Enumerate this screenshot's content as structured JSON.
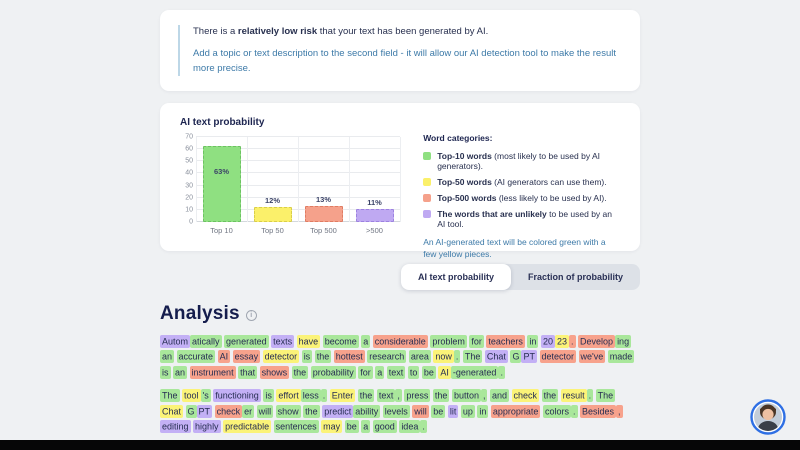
{
  "risk_banner": {
    "line1_prefix": "There is a ",
    "line1_bold": "relatively low risk",
    "line1_suffix": " that your text has been generated by AI.",
    "line2": "Add a topic or text description to the second field - it will allow our AI detection tool to make the result more precise."
  },
  "chart_card": {
    "title": "AI text probability",
    "legend": {
      "heading": "Word categories:",
      "items": [
        {
          "color": "#8fe081",
          "bold": "Top-10 words",
          "rest": " (most likely to be used by AI generators)."
        },
        {
          "color": "#fbf06a",
          "bold": "Top-50 words",
          "rest": " (AI generators can use them)."
        },
        {
          "color": "#f5a18b",
          "bold": "Top-500 words",
          "rest": " (less likely to be used by AI)."
        },
        {
          "color": "#bfa9f2",
          "bold": "The words that are unlikely",
          "rest": " to be used by an AI tool."
        }
      ],
      "note": "An AI-generated text will be colored green with a few yellow pieces."
    }
  },
  "chart_data": {
    "type": "bar",
    "title": "AI text probability",
    "categories": [
      "Top 10",
      "Top 50",
      "Top 500",
      ">500"
    ],
    "values": [
      63,
      12,
      13,
      11
    ],
    "data_labels": [
      "63%",
      "12%",
      "13%",
      "11%"
    ],
    "bar_colors": [
      "#8fe081",
      "#fbf06a",
      "#f5a18b",
      "#bfa9f2"
    ],
    "bar_border_colors": [
      "#6cc262",
      "#d9ce4a",
      "#e07c63",
      "#9d82e0"
    ],
    "ylim": [
      0,
      70
    ],
    "yticks": [
      0,
      10,
      20,
      30,
      40,
      50,
      60,
      70
    ],
    "grid": true,
    "legend_position": "right"
  },
  "tabs": [
    {
      "label": "AI text probability",
      "active": true
    },
    {
      "label": "Fraction of probability",
      "active": false
    }
  ],
  "analysis": {
    "heading": "Analysis",
    "highlight_colors": {
      "g": "#a9e79b",
      "y": "#fbf378",
      "r": "#f7a28c",
      "p": "#c3b0f5"
    },
    "paragraphs": [
      [
        {
          "t": "Autom",
          "c": "p"
        },
        {
          "t": "atically",
          "c": "g",
          "j": 1
        },
        {
          "t": "generated",
          "c": "g"
        },
        {
          "t": "texts",
          "c": "p"
        },
        {
          "t": "have",
          "c": "y"
        },
        {
          "t": "become",
          "c": "g"
        },
        {
          "t": "a",
          "c": "g"
        },
        {
          "t": "considerable",
          "c": "r"
        },
        {
          "t": "problem",
          "c": "g"
        },
        {
          "t": "for",
          "c": "g"
        },
        {
          "t": "teachers",
          "c": "r"
        },
        {
          "t": "in",
          "c": "g"
        },
        {
          "t": "20",
          "c": "p"
        },
        {
          "t": "23",
          "c": "y",
          "j": 1
        },
        {
          "t": ".",
          "c": "r",
          "j": 1
        },
        {
          "t": "Develop",
          "c": "r"
        },
        {
          "t": "ing",
          "c": "g",
          "j": 1
        },
        {
          "t": "an",
          "c": "g"
        },
        {
          "t": "accurate",
          "c": "g"
        },
        {
          "t": "AI",
          "c": "r"
        },
        {
          "t": "essay",
          "c": "r"
        },
        {
          "t": "detector",
          "c": "y"
        },
        {
          "t": "is",
          "c": "g"
        },
        {
          "t": "the",
          "c": "g"
        },
        {
          "t": "hottest",
          "c": "r"
        },
        {
          "t": "research",
          "c": "g"
        },
        {
          "t": "area",
          "c": "g"
        },
        {
          "t": "now",
          "c": "y"
        },
        {
          "t": ".",
          "c": "g",
          "j": 1
        },
        {
          "t": "The",
          "c": "g"
        },
        {
          "t": "Chat",
          "c": "p"
        },
        {
          "t": "G",
          "c": "g"
        },
        {
          "t": "PT",
          "c": "p",
          "j": 1
        },
        {
          "t": "detector",
          "c": "r"
        },
        {
          "t": "we've",
          "c": "r"
        },
        {
          "t": "made",
          "c": "g"
        },
        {
          "t": "is",
          "c": "g"
        },
        {
          "t": "an",
          "c": "g"
        },
        {
          "t": "instrument",
          "c": "r"
        },
        {
          "t": "that",
          "c": "g"
        },
        {
          "t": "shows",
          "c": "r"
        },
        {
          "t": "the",
          "c": "g"
        },
        {
          "t": "probability",
          "c": "g"
        },
        {
          "t": "for",
          "c": "g"
        },
        {
          "t": "a",
          "c": "g"
        },
        {
          "t": "text",
          "c": "g"
        },
        {
          "t": "to",
          "c": "g"
        },
        {
          "t": "be",
          "c": "g"
        },
        {
          "t": "AI",
          "c": "y"
        },
        {
          "t": "-generated",
          "c": "g",
          "j": 1
        },
        {
          "t": ".",
          "c": "g",
          "j": 1
        }
      ],
      [
        {
          "t": "The",
          "c": "g"
        },
        {
          "t": "tool",
          "c": "y"
        },
        {
          "t": "'s",
          "c": "g",
          "j": 1
        },
        {
          "t": "functioning",
          "c": "p"
        },
        {
          "t": "is",
          "c": "g"
        },
        {
          "t": "effort",
          "c": "y"
        },
        {
          "t": "less",
          "c": "g",
          "j": 1
        },
        {
          "t": ".",
          "c": "g",
          "j": 1
        },
        {
          "t": "Enter",
          "c": "y"
        },
        {
          "t": "the",
          "c": "g"
        },
        {
          "t": "text",
          "c": "g"
        },
        {
          "t": ",",
          "c": "g",
          "j": 1
        },
        {
          "t": "press",
          "c": "g"
        },
        {
          "t": "the",
          "c": "g"
        },
        {
          "t": "button",
          "c": "g"
        },
        {
          "t": ",",
          "c": "g",
          "j": 1
        },
        {
          "t": "and",
          "c": "g"
        },
        {
          "t": "check",
          "c": "y"
        },
        {
          "t": "the",
          "c": "g"
        },
        {
          "t": "result",
          "c": "y"
        },
        {
          "t": ".",
          "c": "g",
          "j": 1
        },
        {
          "t": "The",
          "c": "g"
        },
        {
          "t": "Chat",
          "c": "y"
        },
        {
          "t": "G",
          "c": "g"
        },
        {
          "t": "PT",
          "c": "p",
          "j": 1
        },
        {
          "t": "check",
          "c": "r"
        },
        {
          "t": "er",
          "c": "g",
          "j": 1
        },
        {
          "t": "will",
          "c": "g"
        },
        {
          "t": "show",
          "c": "g"
        },
        {
          "t": "the",
          "c": "g"
        },
        {
          "t": "predict",
          "c": "p"
        },
        {
          "t": "ability",
          "c": "g",
          "j": 1
        },
        {
          "t": "levels",
          "c": "g"
        },
        {
          "t": "will",
          "c": "r"
        },
        {
          "t": "be",
          "c": "g"
        },
        {
          "t": "lit",
          "c": "p"
        },
        {
          "t": "up",
          "c": "g"
        },
        {
          "t": "in",
          "c": "g"
        },
        {
          "t": "appropriate",
          "c": "r"
        },
        {
          "t": "colors",
          "c": "g"
        },
        {
          "t": ".",
          "c": "g",
          "j": 1
        },
        {
          "t": "Besides",
          "c": "r"
        },
        {
          "t": ",",
          "c": "r",
          "j": 1
        },
        {
          "t": "editing",
          "c": "p"
        },
        {
          "t": "highly",
          "c": "p"
        },
        {
          "t": "predictable",
          "c": "y"
        },
        {
          "t": "sentences",
          "c": "g"
        },
        {
          "t": "may",
          "c": "y"
        },
        {
          "t": "be",
          "c": "g"
        },
        {
          "t": "a",
          "c": "g"
        },
        {
          "t": "good",
          "c": "g"
        },
        {
          "t": "idea",
          "c": "g"
        },
        {
          "t": ".",
          "c": "g",
          "j": 1
        }
      ]
    ]
  }
}
